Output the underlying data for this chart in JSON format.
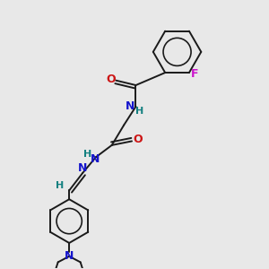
{
  "background_color": "#e8e8e8",
  "bond_color": "#1a1a1a",
  "nitrogen_color": "#1414cc",
  "oxygen_color": "#cc1414",
  "fluorine_color": "#cc14cc",
  "hydrogen_color": "#148080",
  "figsize": [
    3.0,
    3.0
  ],
  "dpi": 100,
  "xlim": [
    0,
    10
  ],
  "ylim": [
    0,
    10
  ]
}
